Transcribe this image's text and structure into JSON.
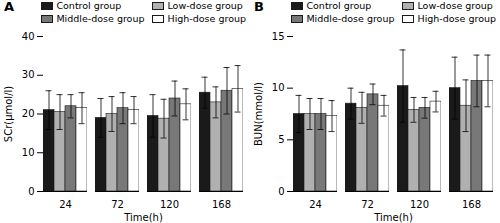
{
  "chart_data": [
    {
      "type": "bar",
      "title": "A",
      "xlabel": "Time(h)",
      "ylabel": "SCr(μmol/l)",
      "categories": [
        "24",
        "72",
        "120",
        "168"
      ],
      "series": [
        {
          "name": "Control group",
          "color": "#1a1a1a",
          "values": [
            21.0,
            19.0,
            19.5,
            25.5
          ],
          "errors": [
            5.0,
            5.0,
            5.5,
            4.0
          ]
        },
        {
          "name": "Low-dose group",
          "color": "#b0b0b0",
          "values": [
            20.5,
            20.0,
            18.8,
            23.0
          ],
          "errors": [
            4.5,
            4.5,
            5.0,
            4.0
          ]
        },
        {
          "name": "Middle-dose group",
          "color": "#787878",
          "values": [
            22.0,
            21.5,
            24.0,
            26.0
          ],
          "errors": [
            3.0,
            4.0,
            4.5,
            6.0
          ]
        },
        {
          "name": "High-dose group",
          "color": "#ffffff",
          "values": [
            21.5,
            21.0,
            22.5,
            26.5
          ],
          "errors": [
            4.0,
            3.5,
            4.0,
            6.0
          ]
        }
      ],
      "ylim": [
        0,
        40
      ],
      "yticks": [
        0,
        10,
        20,
        30,
        40
      ],
      "grid": false,
      "legend": "upper right"
    },
    {
      "type": "bar",
      "title": "B",
      "xlabel": "Time(h)",
      "ylabel": "BUN(mmol/l)",
      "categories": [
        "24",
        "72",
        "120",
        "168"
      ],
      "series": [
        {
          "name": "Control group",
          "color": "#1a1a1a",
          "values": [
            7.5,
            8.5,
            10.2,
            10.0
          ],
          "errors": [
            1.8,
            1.5,
            3.5,
            3.0
          ]
        },
        {
          "name": "Low-dose group",
          "color": "#b0b0b0",
          "values": [
            7.5,
            8.1,
            7.9,
            8.3
          ],
          "errors": [
            1.5,
            1.5,
            1.2,
            2.5
          ]
        },
        {
          "name": "Middle-dose group",
          "color": "#787878",
          "values": [
            7.5,
            9.4,
            8.1,
            10.7
          ],
          "errors": [
            1.5,
            1.0,
            1.0,
            2.5
          ]
        },
        {
          "name": "High-dose group",
          "color": "#ffffff",
          "values": [
            7.3,
            8.3,
            8.7,
            10.7
          ],
          "errors": [
            1.5,
            1.0,
            1.0,
            2.5
          ]
        }
      ],
      "ylim": [
        0,
        15
      ],
      "yticks": [
        0,
        5,
        10,
        15
      ],
      "grid": false,
      "legend": "upper right"
    }
  ]
}
